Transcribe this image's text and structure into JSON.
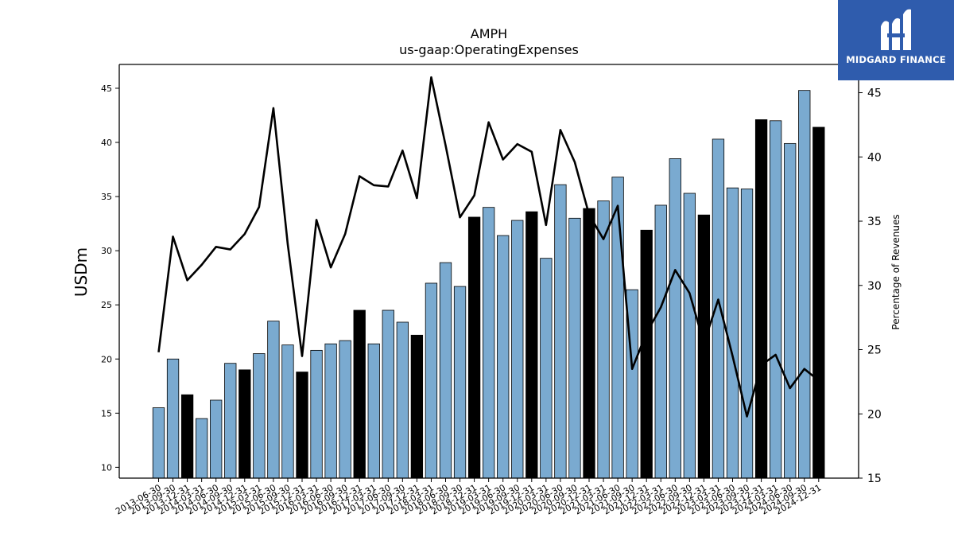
{
  "brand": {
    "logo_text": "MIDGARD FINANCE"
  },
  "colors": {
    "regular_bar": "#7aaad0",
    "highlight_bar": "#000000",
    "line": "#000000",
    "logo_bg": "#2f5cad"
  },
  "chart_data": {
    "type": "bar",
    "title": "AMPH",
    "subtitle": "us-gaap:OperatingExpenses",
    "ylabel": "USDm",
    "y2label": "Percentage of Revenues",
    "ylim": [
      9,
      47.2
    ],
    "y2lim": [
      15,
      47.2
    ],
    "yticks": [
      10,
      15,
      20,
      25,
      30,
      35,
      40,
      45
    ],
    "y2ticks": [
      15,
      20,
      25,
      30,
      35,
      40,
      45
    ],
    "categories": [
      "2013-06-30",
      "2013-09-30",
      "2013-12-31",
      "2014-03-31",
      "2014-06-30",
      "2014-09-30",
      "2014-12-31",
      "2015-03-31",
      "2015-06-30",
      "2015-09-30",
      "2015-12-31",
      "2016-03-31",
      "2016-06-30",
      "2016-09-30",
      "2016-12-31",
      "2017-03-31",
      "2017-06-30",
      "2017-09-30",
      "2017-12-31",
      "2018-03-31",
      "2018-06-30",
      "2018-09-30",
      "2018-12-31",
      "2019-03-31",
      "2019-06-30",
      "2019-09-30",
      "2019-12-31",
      "2020-03-31",
      "2020-06-30",
      "2020-09-30",
      "2020-12-31",
      "2021-03-31",
      "2021-06-30",
      "2021-09-30",
      "2021-12-31",
      "2022-03-31",
      "2022-06-30",
      "2022-09-30",
      "2022-12-31",
      "2023-03-31",
      "2023-06-30",
      "2023-09-30",
      "2023-12-31",
      "2024-03-31",
      "2024-06-30",
      "2024-09-30",
      "2024-12-31"
    ],
    "series": [
      {
        "type": "bar",
        "values": [
          15.5,
          20.0,
          16.7,
          14.5,
          16.2,
          19.6,
          19.0,
          20.5,
          23.5,
          21.3,
          18.8,
          20.8,
          21.4,
          21.7,
          24.5,
          21.4,
          24.5,
          23.4,
          22.2,
          27.0,
          28.9,
          26.7,
          33.1,
          34.0,
          31.4,
          32.8,
          33.6,
          29.3,
          36.1,
          33.0,
          33.9,
          34.6,
          36.8,
          26.4,
          31.9,
          34.2,
          38.5,
          35.3,
          33.3,
          40.3,
          35.8,
          35.7,
          42.1,
          42.0,
          39.9,
          44.8,
          41.4
        ],
        "highlight": [
          false,
          false,
          true,
          false,
          false,
          false,
          true,
          false,
          false,
          false,
          true,
          false,
          false,
          false,
          true,
          false,
          false,
          false,
          true,
          false,
          false,
          false,
          true,
          false,
          false,
          false,
          true,
          false,
          false,
          false,
          true,
          false,
          false,
          false,
          true,
          false,
          false,
          false,
          true,
          false,
          false,
          false,
          true,
          false,
          false,
          false,
          true
        ]
      },
      {
        "type": "line",
        "axis": "right",
        "values": [
          24.8,
          33.8,
          30.4,
          31.6,
          33.0,
          32.8,
          34.0,
          36.1,
          43.8,
          33.2,
          24.5,
          35.1,
          31.4,
          34.0,
          38.5,
          37.8,
          37.7,
          40.5,
          36.8,
          46.2,
          40.9,
          35.3,
          37.0,
          42.7,
          39.8,
          41.0,
          40.4,
          34.7,
          42.1,
          39.6,
          35.5,
          33.6,
          36.2,
          23.5,
          26.3,
          28.3,
          31.2,
          29.4,
          25.5,
          28.9,
          24.5,
          19.8,
          23.8,
          24.6,
          22.0,
          23.5,
          22.6
        ]
      }
    ]
  }
}
